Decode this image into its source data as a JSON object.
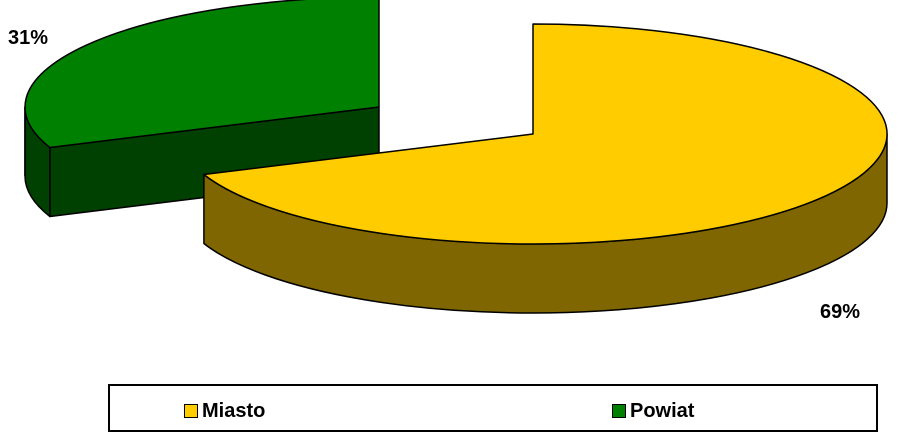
{
  "chart_data": {
    "type": "pie",
    "style": "3d-exploded",
    "categories": [
      "Miasto",
      "Powiat"
    ],
    "values": [
      69,
      31
    ],
    "data_labels": [
      "69%",
      "31%"
    ],
    "colors": {
      "Miasto": {
        "top": "#FFCC00",
        "side": "#806600"
      },
      "Powiat": {
        "top": "#008000",
        "side": "#004000"
      }
    },
    "legend_position": "bottom"
  }
}
